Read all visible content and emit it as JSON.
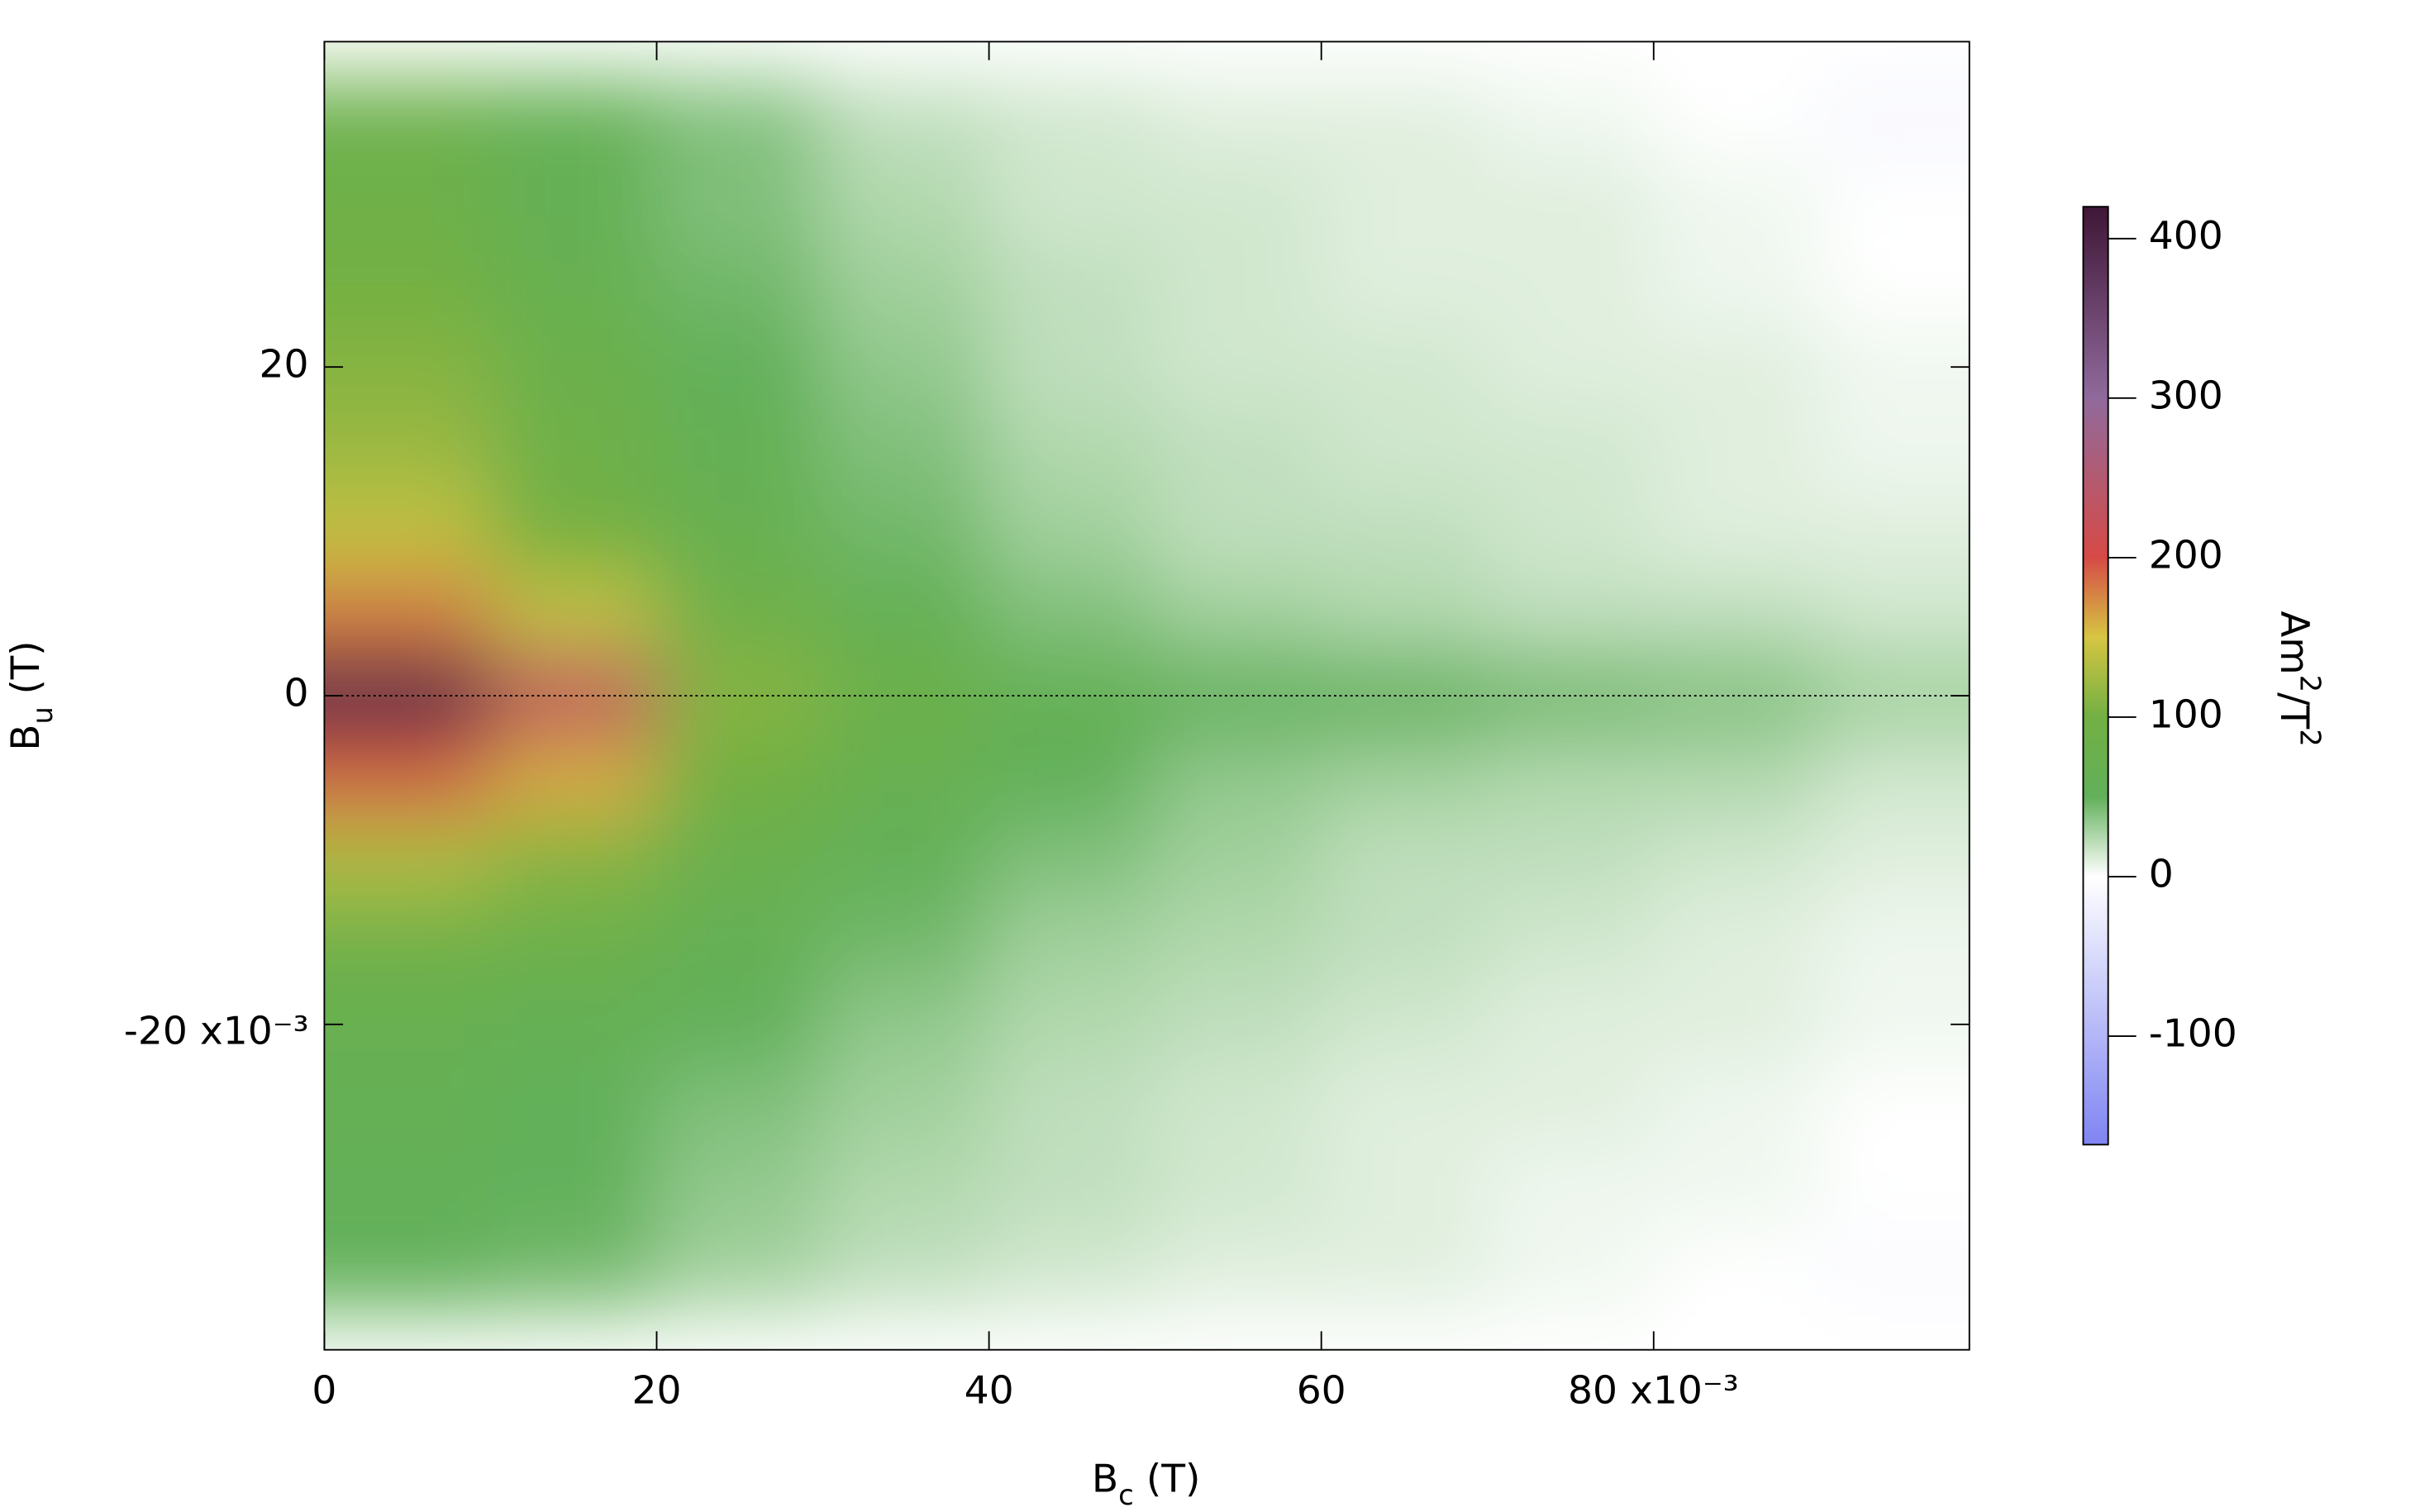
{
  "chart_data": {
    "type": "heatmap",
    "x_label": [
      "B",
      "c",
      " (T)"
    ],
    "y_label": [
      "B",
      "u",
      " (T)"
    ],
    "colorbar_label": [
      "Am",
      "2",
      "/T",
      "2"
    ],
    "x": [
      0.005,
      0.015,
      0.025,
      0.035,
      0.045,
      0.055,
      0.065,
      0.075,
      0.085,
      0.095
    ],
    "y": [
      0.035,
      0.03,
      0.025,
      0.02,
      0.015,
      0.01,
      0.005,
      0,
      -0.005,
      -0.01,
      -0.015,
      -0.02,
      -0.025,
      -0.03,
      -0.035
    ],
    "z": [
      [
        80,
        60,
        40,
        20,
        15,
        10,
        10,
        5,
        0,
        -10
      ],
      [
        90,
        60,
        40,
        25,
        15,
        15,
        10,
        10,
        5,
        0
      ],
      [
        100,
        70,
        45,
        30,
        20,
        15,
        10,
        10,
        5,
        0
      ],
      [
        110,
        80,
        50,
        35,
        20,
        15,
        15,
        10,
        10,
        5
      ],
      [
        120,
        90,
        60,
        40,
        25,
        20,
        15,
        15,
        10,
        5
      ],
      [
        140,
        100,
        70,
        45,
        30,
        20,
        20,
        15,
        10,
        10
      ],
      [
        180,
        140,
        90,
        60,
        40,
        30,
        25,
        20,
        20,
        15
      ],
      [
        400,
        230,
        110,
        80,
        60,
        50,
        50,
        45,
        40,
        30
      ],
      [
        190,
        160,
        100,
        70,
        50,
        35,
        30,
        25,
        25,
        15
      ],
      [
        130,
        110,
        75,
        55,
        40,
        30,
        20,
        20,
        15,
        10
      ],
      [
        90,
        80,
        60,
        45,
        30,
        25,
        20,
        15,
        10,
        5
      ],
      [
        70,
        60,
        50,
        35,
        25,
        20,
        15,
        10,
        10,
        5
      ],
      [
        60,
        50,
        40,
        30,
        20,
        15,
        10,
        10,
        5,
        0
      ],
      [
        55,
        50,
        35,
        25,
        20,
        15,
        10,
        5,
        5,
        0
      ],
      [
        50,
        45,
        30,
        20,
        15,
        10,
        10,
        5,
        0,
        -5
      ]
    ],
    "xlim": [
      0,
      0.099
    ],
    "ylim": [
      -0.0398,
      0.0398
    ],
    "xticks": [
      0,
      {
        "value": 0.02,
        "label": "20"
      },
      {
        "value": 0.04,
        "label": "40"
      },
      {
        "value": 0.06,
        "label": "60"
      },
      {
        "value": 0.08,
        "label": "80 x10⁻³"
      }
    ],
    "yticks": [
      {
        "value": 0.02,
        "label": "20"
      },
      0,
      {
        "value": -0.02,
        "label": "-20 x10⁻³"
      }
    ],
    "zlim": [
      -168,
      420
    ],
    "zticks": [
      -100,
      0,
      100,
      200,
      300,
      400
    ],
    "colorscale": [
      [
        -168,
        "#7f84f2"
      ],
      [
        0,
        "#ffffff"
      ],
      [
        50,
        "#62b05a"
      ],
      [
        100,
        "#72b043"
      ],
      [
        150,
        "#d6c542"
      ],
      [
        200,
        "#d64a46"
      ],
      [
        300,
        "#906a9c"
      ],
      [
        420,
        "#3f1636"
      ]
    ]
  }
}
